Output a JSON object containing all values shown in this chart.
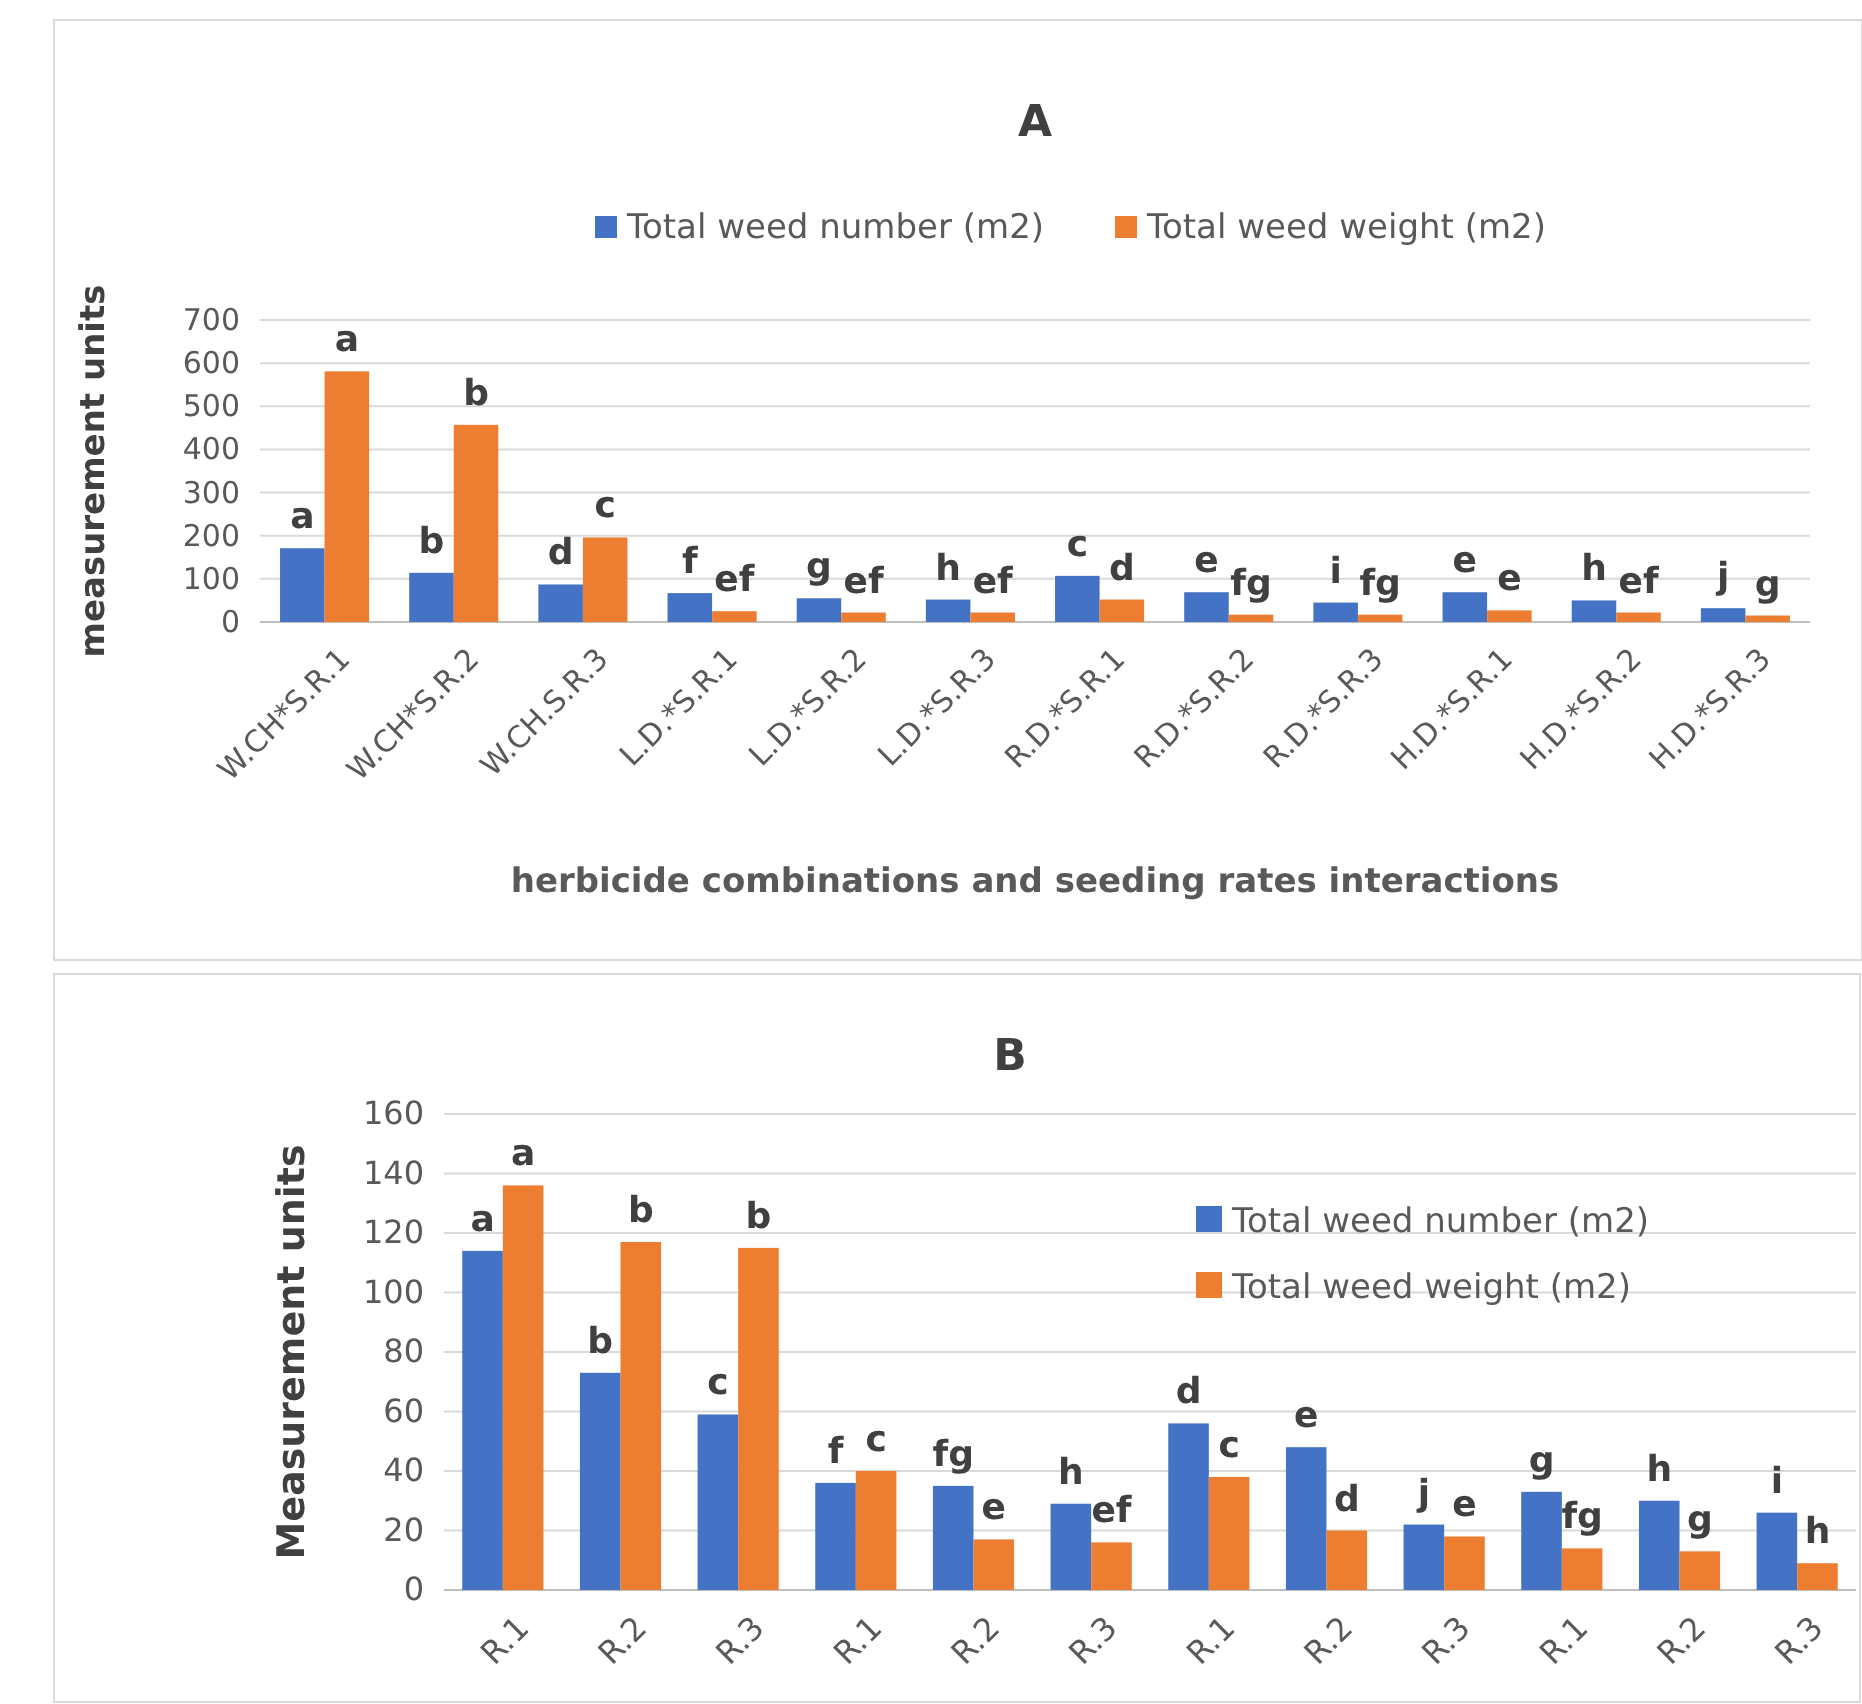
{
  "chart_data": [
    {
      "type": "bar",
      "title": "A",
      "xlabel": "herbicide combinations and seeding rates interactions",
      "ylabel": "measurement units",
      "categories": [
        "W.CH*S.R.1",
        "W.CH*S.R.2",
        "W.CH.S.R.3",
        "L.D.*S.R.1",
        "L.D.*S.R.2",
        "L.D.*S.R.3",
        "R.D.*S.R.1",
        "R.D.*S.R.2",
        "R.D.*S.R.3",
        "H.D.*S.R.1",
        "H.D.*S.R.2",
        "H.D.*S.R.3"
      ],
      "series": [
        {
          "name": "Total weed number (m2)",
          "color": "#4472c4",
          "values": [
            171,
            114,
            87,
            67,
            55,
            52,
            107,
            69,
            45,
            69,
            50,
            32
          ],
          "value_labels": [
            "a",
            "b",
            "d",
            "f",
            "g",
            "h",
            "c",
            "e",
            "i",
            "e",
            "h",
            "j"
          ]
        },
        {
          "name": "Total weed weight (m2)",
          "color": "#ed7d31",
          "values": [
            581,
            457,
            196,
            25,
            22,
            22,
            52,
            17,
            17,
            27,
            22,
            15
          ],
          "value_labels": [
            "a",
            "b",
            "c",
            "ef",
            "ef",
            "ef",
            "d",
            "fg",
            "fg",
            "e",
            "ef",
            "g"
          ]
        }
      ],
      "ylim": [
        0,
        700
      ],
      "yticks": [
        0,
        100,
        200,
        300,
        400,
        500,
        600,
        700
      ],
      "grid": "y",
      "legend": "top"
    },
    {
      "type": "bar",
      "title": "B",
      "ylabel": "Measurement units",
      "categories": [
        "R.1",
        "R.2",
        "R.3",
        "R.1",
        "R.2",
        "R.3",
        "R.1",
        "R.2",
        "R.3",
        "R.1",
        "R.2",
        "R.3"
      ],
      "series": [
        {
          "name": "Total weed number (m2)",
          "color": "#4472c4",
          "values": [
            114,
            73,
            59,
            36,
            35,
            29,
            56,
            48,
            22,
            33,
            30,
            26
          ],
          "value_labels": [
            "a",
            "b",
            "c",
            "f",
            "fg",
            "h",
            "d",
            "e",
            "j",
            "g",
            "h",
            "i"
          ]
        },
        {
          "name": "Total weed weight (m2)",
          "color": "#ed7d31",
          "values": [
            136,
            117,
            115,
            40,
            17,
            16,
            38,
            20,
            18,
            14,
            13,
            9
          ],
          "value_labels": [
            "a",
            "b",
            "b",
            "c",
            "e",
            "ef",
            "c",
            "d",
            "e",
            "fg",
            "g",
            "h"
          ]
        }
      ],
      "ylim": [
        0,
        160
      ],
      "yticks": [
        0,
        20,
        40,
        60,
        80,
        100,
        120,
        140,
        160
      ],
      "grid": "y",
      "legend": "top right"
    }
  ]
}
